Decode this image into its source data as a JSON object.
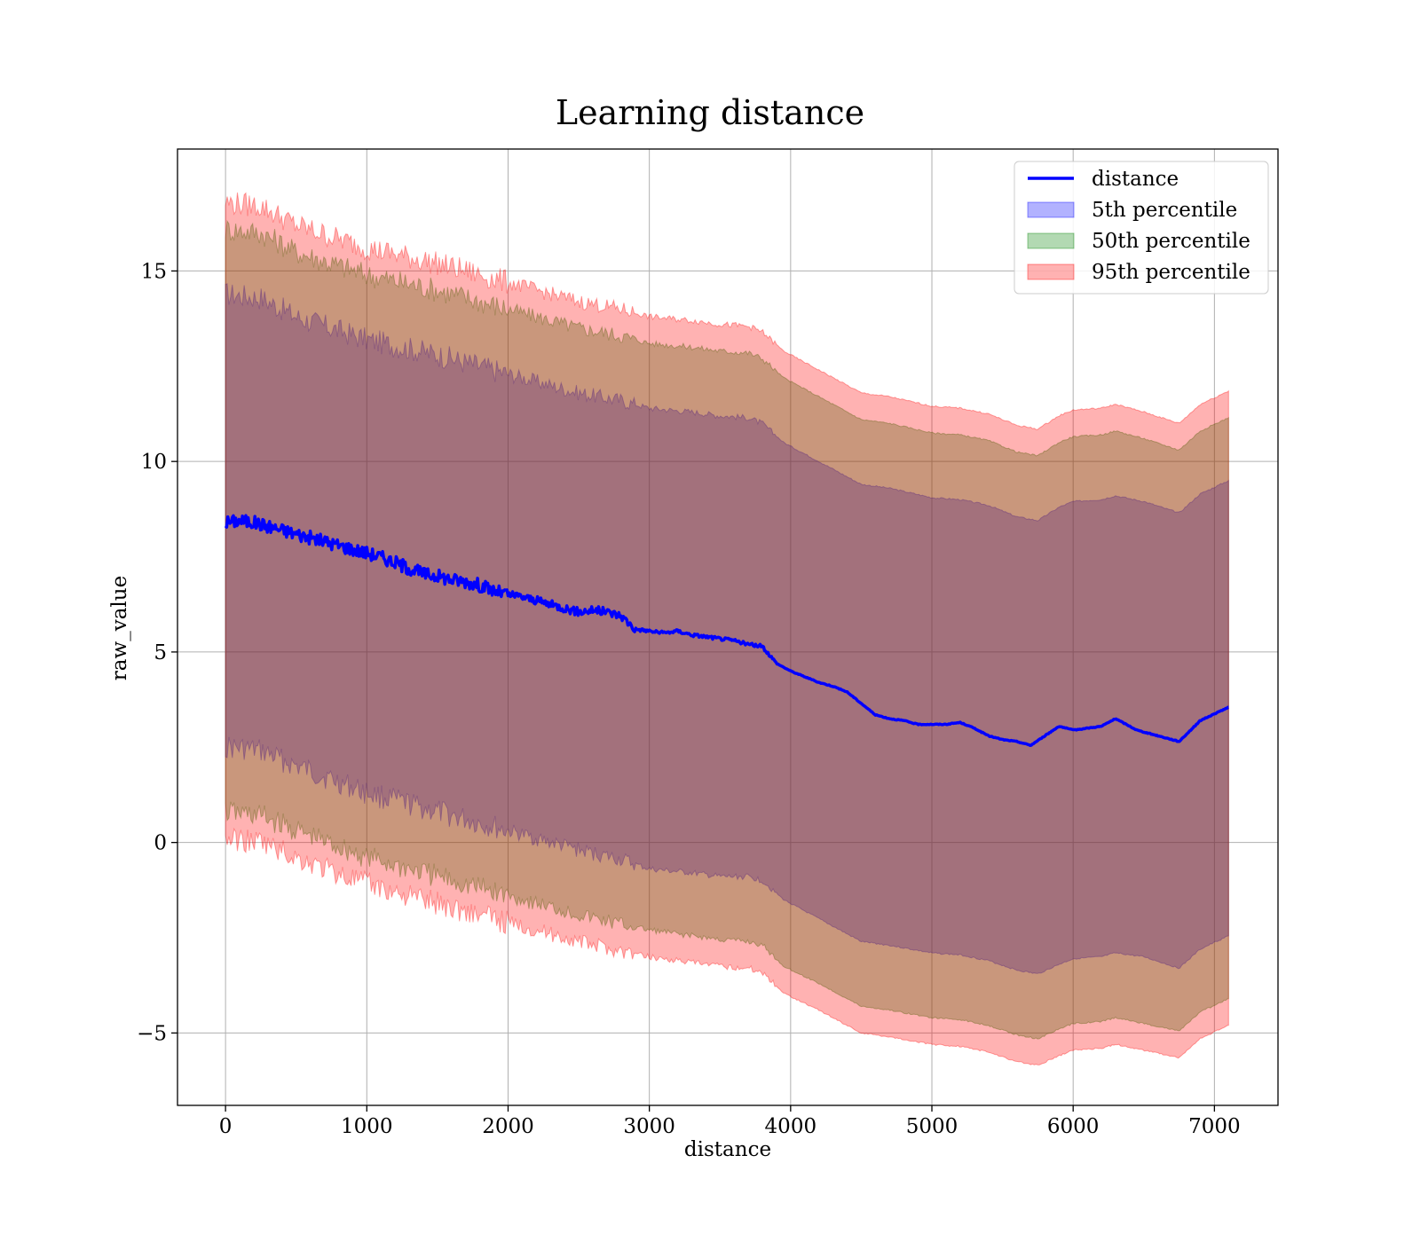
{
  "chart_data": {
    "type": "line",
    "title": "Learning distance",
    "xlabel": "distance",
    "ylabel": "raw_value",
    "xlim": [
      -340,
      7450
    ],
    "ylim": [
      -6.9,
      18.2
    ],
    "grid": true,
    "legend_position": "top-right",
    "x_ticks": [
      0,
      1000,
      2000,
      3000,
      4000,
      5000,
      6000,
      7000
    ],
    "x_tick_labels": [
      "0",
      "1000",
      "2000",
      "3000",
      "4000",
      "5000",
      "6000",
      "7000"
    ],
    "y_ticks": [
      -5,
      0,
      5,
      10,
      15
    ],
    "y_tick_labels": [
      "−5",
      "0",
      "5",
      "10",
      "15"
    ],
    "series": [
      {
        "name": "distance",
        "kind": "line",
        "color": "#0000ff",
        "x": [
          0,
          100,
          200,
          300,
          400,
          500,
          600,
          700,
          800,
          900,
          1000,
          1100,
          1200,
          1300,
          1400,
          1500,
          1600,
          1700,
          1800,
          1900,
          2000,
          2100,
          2200,
          2300,
          2400,
          2500,
          2600,
          2700,
          2800,
          2900,
          3000,
          3100,
          3200,
          3300,
          3400,
          3500,
          3600,
          3700,
          3800,
          3900,
          4000,
          4100,
          4200,
          4300,
          4400,
          4500,
          4600,
          4700,
          4800,
          4900,
          5000,
          5100,
          5200,
          5300,
          5400,
          5500,
          5600,
          5700,
          5800,
          5900,
          6000,
          6100,
          6200,
          6300,
          6450,
          6600,
          6750,
          6900,
          7100
        ],
        "y": [
          8.4,
          8.45,
          8.4,
          8.3,
          8.2,
          8.1,
          8.0,
          7.9,
          7.8,
          7.7,
          7.6,
          7.5,
          7.35,
          7.2,
          7.05,
          7.0,
          6.9,
          6.85,
          6.75,
          6.6,
          6.5,
          6.45,
          6.35,
          6.25,
          6.15,
          6.05,
          6.1,
          6.05,
          5.95,
          5.6,
          5.55,
          5.5,
          5.55,
          5.45,
          5.4,
          5.35,
          5.3,
          5.2,
          5.15,
          4.7,
          4.5,
          4.35,
          4.2,
          4.1,
          3.95,
          3.65,
          3.35,
          3.25,
          3.2,
          3.1,
          3.1,
          3.1,
          3.15,
          3.0,
          2.8,
          2.7,
          2.65,
          2.55,
          2.8,
          3.05,
          2.95,
          3.0,
          3.05,
          3.25,
          2.95,
          2.8,
          2.65,
          3.2,
          3.55
        ]
      },
      {
        "name": "5th percentile",
        "kind": "band",
        "color": "#0000ff",
        "x": [
          0,
          250,
          500,
          1000,
          1500,
          2000,
          2500,
          2800,
          3000,
          3300,
          3500,
          3700,
          3800,
          3950,
          4200,
          4500,
          4700,
          5000,
          5200,
          5400,
          5600,
          5750,
          5900,
          6000,
          6200,
          6300,
          6500,
          6750,
          6900,
          7100
        ],
        "lower": [
          2.5,
          2.4,
          2.0,
          1.3,
          0.8,
          0.3,
          -0.2,
          -0.45,
          -0.7,
          -0.8,
          -0.9,
          -0.9,
          -1.0,
          -1.5,
          -2.0,
          -2.6,
          -2.7,
          -2.9,
          -2.95,
          -3.1,
          -3.35,
          -3.45,
          -3.2,
          -3.05,
          -3.0,
          -2.9,
          -3.0,
          -3.3,
          -2.8,
          -2.45
        ],
        "upper": [
          14.4,
          14.3,
          13.8,
          13.2,
          12.8,
          12.3,
          11.8,
          11.6,
          11.4,
          11.3,
          11.2,
          11.15,
          11.0,
          10.5,
          10.0,
          9.4,
          9.3,
          9.05,
          9.0,
          8.85,
          8.55,
          8.45,
          8.8,
          8.95,
          9.0,
          9.1,
          8.95,
          8.65,
          9.15,
          9.5
        ]
      },
      {
        "name": "50th percentile",
        "kind": "band",
        "color": "#008000",
        "x": [
          0,
          250,
          500,
          1000,
          1500,
          2000,
          2500,
          2800,
          3000,
          3300,
          3500,
          3700,
          3800,
          3950,
          4200,
          4500,
          4700,
          5000,
          5200,
          5400,
          5600,
          5750,
          5900,
          6000,
          6200,
          6300,
          6500,
          6750,
          6900,
          7100
        ],
        "lower": [
          0.8,
          0.7,
          0.3,
          -0.4,
          -0.9,
          -1.4,
          -1.9,
          -2.15,
          -2.3,
          -2.45,
          -2.55,
          -2.6,
          -2.7,
          -3.25,
          -3.7,
          -4.3,
          -4.4,
          -4.6,
          -4.65,
          -4.8,
          -5.05,
          -5.15,
          -4.9,
          -4.75,
          -4.7,
          -4.6,
          -4.75,
          -4.95,
          -4.45,
          -4.1
        ],
        "upper": [
          16.1,
          16.0,
          15.5,
          14.9,
          14.5,
          14.0,
          13.5,
          13.3,
          13.1,
          13.0,
          12.9,
          12.85,
          12.7,
          12.2,
          11.7,
          11.1,
          11.0,
          10.75,
          10.7,
          10.55,
          10.25,
          10.15,
          10.5,
          10.65,
          10.7,
          10.8,
          10.6,
          10.3,
          10.8,
          11.15
        ]
      },
      {
        "name": "95th percentile",
        "kind": "band",
        "color": "#ff0000",
        "x": [
          0,
          250,
          500,
          1000,
          1500,
          2000,
          2500,
          2800,
          3000,
          3300,
          3500,
          3700,
          3800,
          3950,
          4200,
          4500,
          4700,
          5000,
          5200,
          5400,
          5600,
          5750,
          5900,
          6000,
          6200,
          6300,
          6500,
          6750,
          6900,
          7100
        ],
        "lower": [
          0.1,
          0.0,
          -0.4,
          -1.1,
          -1.6,
          -2.1,
          -2.6,
          -2.85,
          -3.0,
          -3.15,
          -3.25,
          -3.3,
          -3.4,
          -3.95,
          -4.4,
          -5.0,
          -5.1,
          -5.3,
          -5.35,
          -5.5,
          -5.75,
          -5.85,
          -5.6,
          -5.45,
          -5.4,
          -5.3,
          -5.45,
          -5.65,
          -5.15,
          -4.8
        ],
        "upper": [
          16.8,
          16.7,
          16.2,
          15.6,
          15.2,
          14.7,
          14.2,
          14.0,
          13.8,
          13.7,
          13.6,
          13.55,
          13.4,
          12.9,
          12.4,
          11.8,
          11.7,
          11.45,
          11.4,
          11.25,
          10.95,
          10.85,
          11.2,
          11.35,
          11.4,
          11.5,
          11.3,
          11.0,
          11.5,
          11.85
        ]
      }
    ]
  }
}
